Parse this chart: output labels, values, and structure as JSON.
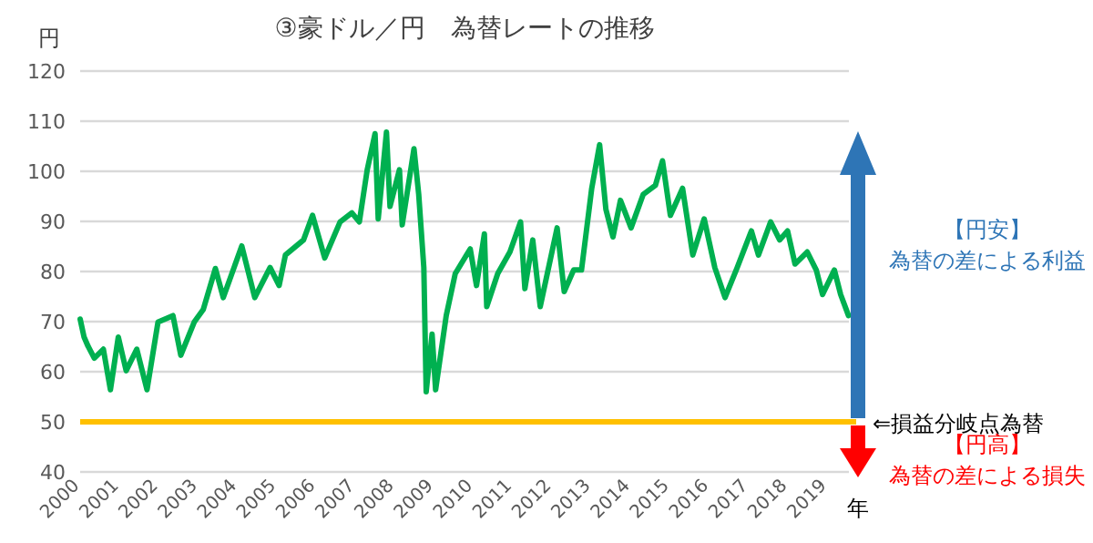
{
  "chart_data": {
    "type": "line",
    "title": "③豪ドル／円　為替レートの推移",
    "xlabel": "年",
    "ylabel": "円",
    "xlim": [
      2000,
      2019.55
    ],
    "xticks": [
      2000,
      2001,
      2002,
      2003,
      2004,
      2005,
      2006,
      2007,
      2008,
      2009,
      2010,
      2011,
      2012,
      2013,
      2014,
      2015,
      2016,
      2017,
      2018,
      2019
    ],
    "ylim": [
      40,
      120
    ],
    "yticks": [
      40,
      50,
      60,
      70,
      80,
      90,
      100,
      110,
      120
    ],
    "grid": "y",
    "x": [
      2000.0,
      2000.1,
      2000.2,
      2000.36,
      2000.59,
      2000.77,
      2000.97,
      2001.17,
      2001.44,
      2001.7,
      2001.98,
      2002.36,
      2002.56,
      2002.9,
      2003.13,
      2003.44,
      2003.64,
      2004.11,
      2004.44,
      2004.83,
      2005.06,
      2005.22,
      2005.68,
      2005.91,
      2006.22,
      2006.61,
      2006.91,
      2007.1,
      2007.3,
      2007.5,
      2007.58,
      2007.79,
      2007.88,
      2008.12,
      2008.19,
      2008.49,
      2008.61,
      2008.74,
      2008.8,
      2008.95,
      2009.04,
      2009.31,
      2009.54,
      2009.92,
      2010.08,
      2010.28,
      2010.34,
      2010.62,
      2010.93,
      2011.2,
      2011.31,
      2011.51,
      2011.7,
      2012.13,
      2012.31,
      2012.55,
      2012.75,
      2013.01,
      2013.21,
      2013.37,
      2013.55,
      2013.74,
      2014.01,
      2014.32,
      2014.63,
      2014.81,
      2015.01,
      2015.32,
      2015.58,
      2015.87,
      2016.14,
      2016.4,
      2016.71,
      2017.07,
      2017.25,
      2017.56,
      2017.79,
      2017.99,
      2018.18,
      2018.49,
      2018.72,
      2018.88,
      2019.18,
      2019.34,
      2019.54
    ],
    "series": [
      {
        "color": "#00b050",
        "values": [
          70.5,
          66.9,
          65.1,
          62.7,
          64.5,
          56.4,
          66.9,
          60.2,
          64.5,
          56.4,
          69.9,
          71.2,
          63.3,
          69.9,
          72.4,
          80.6,
          74.8,
          85.1,
          74.8,
          80.8,
          77.2,
          83.3,
          86.3,
          91.2,
          82.7,
          89.9,
          91.7,
          89.9,
          100.3,
          107.5,
          90.5,
          107.8,
          93.0,
          100.3,
          89.3,
          104.5,
          95.4,
          80.8,
          56.0,
          67.5,
          56.4,
          71.2,
          79.6,
          84.5,
          77.2,
          87.5,
          73.0,
          79.6,
          83.9,
          89.9,
          76.6,
          86.3,
          73.0,
          88.7,
          76.0,
          80.3,
          80.3,
          96.6,
          105.3,
          92.4,
          86.9,
          94.2,
          88.7,
          95.4,
          97.2,
          102.1,
          91.2,
          96.6,
          83.3,
          90.5,
          80.8,
          74.8,
          80.8,
          88.1,
          83.3,
          89.9,
          86.3,
          88.1,
          81.5,
          83.9,
          80.3,
          75.4,
          80.3,
          75.4,
          71.2
        ]
      }
    ],
    "ref_lines": [
      {
        "axis": "y",
        "value": 50,
        "label": "⇐損益分岐点為替",
        "color": "#ffc000"
      }
    ],
    "annotations": [
      "【円安】",
      "為替の差による利益",
      "【円高】",
      "為替の差による損失"
    ]
  }
}
